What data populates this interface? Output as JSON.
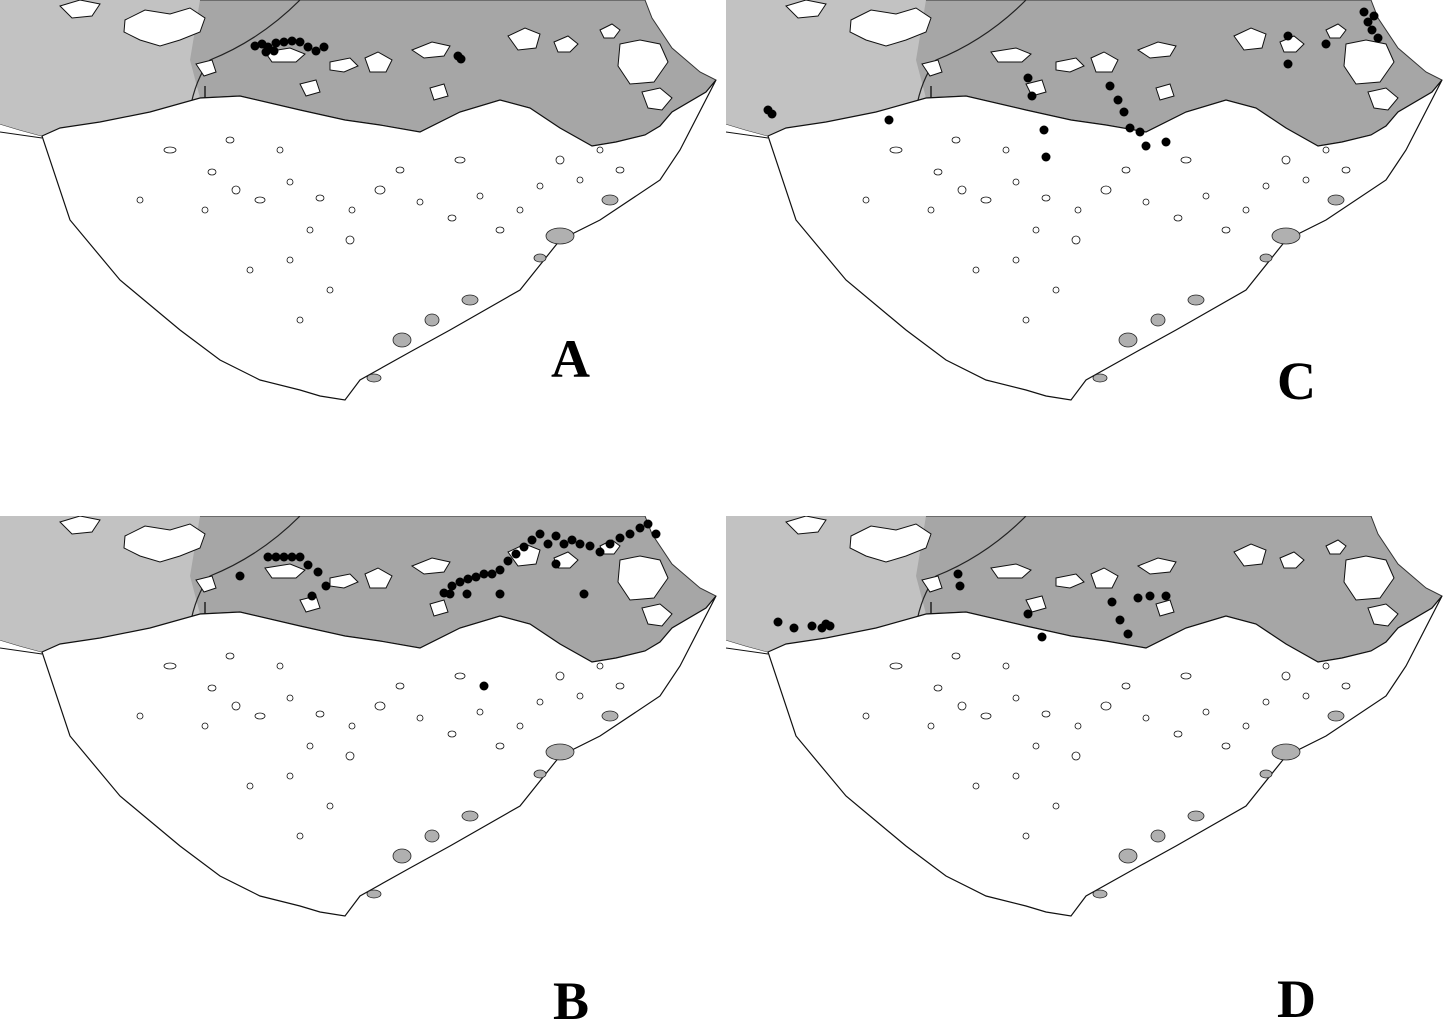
{
  "figure": {
    "panels": [
      {
        "id": "A",
        "label": "A",
        "points": [
          [
            255,
            46
          ],
          [
            262,
            44
          ],
          [
            268,
            47
          ],
          [
            276,
            43
          ],
          [
            284,
            42
          ],
          [
            292,
            41
          ],
          [
            300,
            42
          ],
          [
            308,
            47
          ],
          [
            316,
            51
          ],
          [
            324,
            47
          ],
          [
            266,
            52
          ],
          [
            274,
            51
          ],
          [
            458,
            56
          ],
          [
            461,
            59
          ]
        ]
      },
      {
        "id": "B",
        "label": "B",
        "points": [
          [
            240,
            60
          ],
          [
            268,
            41
          ],
          [
            276,
            41
          ],
          [
            284,
            41
          ],
          [
            292,
            41
          ],
          [
            300,
            41
          ],
          [
            308,
            49
          ],
          [
            318,
            56
          ],
          [
            312,
            80
          ],
          [
            326,
            70
          ],
          [
            444,
            77
          ],
          [
            452,
            70
          ],
          [
            460,
            66
          ],
          [
            468,
            63
          ],
          [
            476,
            61
          ],
          [
            484,
            58
          ],
          [
            492,
            58
          ],
          [
            500,
            54
          ],
          [
            508,
            45
          ],
          [
            516,
            38
          ],
          [
            524,
            31
          ],
          [
            532,
            24
          ],
          [
            540,
            18
          ],
          [
            548,
            28
          ],
          [
            556,
            20
          ],
          [
            564,
            28
          ],
          [
            572,
            24
          ],
          [
            580,
            28
          ],
          [
            590,
            30
          ],
          [
            600,
            36
          ],
          [
            610,
            28
          ],
          [
            620,
            22
          ],
          [
            630,
            18
          ],
          [
            640,
            12
          ],
          [
            648,
            8
          ],
          [
            656,
            18
          ],
          [
            500,
            78
          ],
          [
            556,
            48
          ],
          [
            584,
            78
          ],
          [
            484,
            170
          ],
          [
            450,
            78
          ],
          [
            467,
            78
          ]
        ]
      },
      {
        "id": "C",
        "label": "C",
        "points": [
          [
            42,
            110
          ],
          [
            46,
            114
          ],
          [
            163,
            120
          ],
          [
            302,
            78
          ],
          [
            306,
            96
          ],
          [
            318,
            130
          ],
          [
            320,
            157
          ],
          [
            384,
            86
          ],
          [
            392,
            100
          ],
          [
            398,
            112
          ],
          [
            404,
            128
          ],
          [
            414,
            132
          ],
          [
            420,
            146
          ],
          [
            440,
            142
          ],
          [
            638,
            12
          ],
          [
            642,
            22
          ],
          [
            646,
            30
          ],
          [
            652,
            38
          ],
          [
            648,
            16
          ],
          [
            562,
            36
          ],
          [
            562,
            64
          ],
          [
            600,
            44
          ]
        ]
      },
      {
        "id": "D",
        "label": "D",
        "points": [
          [
            52,
            106
          ],
          [
            68,
            112
          ],
          [
            86,
            110
          ],
          [
            96,
            112
          ],
          [
            100,
            108
          ],
          [
            104,
            110
          ],
          [
            232,
            58
          ],
          [
            234,
            70
          ],
          [
            302,
            98
          ],
          [
            316,
            121
          ],
          [
            386,
            86
          ],
          [
            394,
            104
          ],
          [
            402,
            118
          ],
          [
            412,
            82
          ],
          [
            424,
            80
          ],
          [
            440,
            80
          ]
        ]
      }
    ]
  }
}
